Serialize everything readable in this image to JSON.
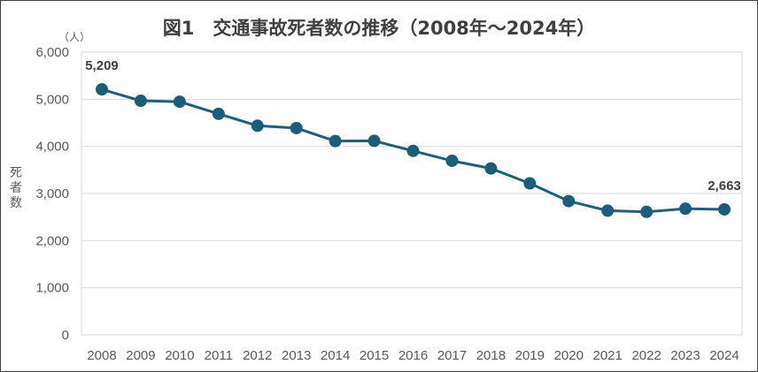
{
  "chart_data": {
    "type": "line",
    "title": "図1　交通事故死者数の推移（2008年～2024年）",
    "unit_label": "（人）",
    "ylabel": "死者数",
    "categories": [
      "2008",
      "2009",
      "2010",
      "2011",
      "2012",
      "2013",
      "2014",
      "2015",
      "2016",
      "2017",
      "2018",
      "2019",
      "2020",
      "2021",
      "2022",
      "2023",
      "2024"
    ],
    "series": [
      {
        "values": [
          5209,
          4968,
          4948,
          4691,
          4438,
          4388,
          4113,
          4117,
          3904,
          3694,
          3532,
          3215,
          2839,
          2636,
          2610,
          2678,
          2663
        ]
      }
    ],
    "ylim": [
      0,
      6000
    ],
    "yticks": [
      0,
      1000,
      2000,
      3000,
      4000,
      5000,
      6000
    ],
    "ytick_labels": [
      "0",
      "1,000",
      "2,000",
      "3,000",
      "4,000",
      "5,000",
      "6,000"
    ],
    "data_labels": [
      {
        "index": 0,
        "text": "5,209"
      },
      {
        "index": 16,
        "text": "2,663"
      }
    ],
    "grid": true,
    "legend": "none",
    "colors": {
      "line": "#1F5F7A",
      "marker": "#1B5E7B",
      "grid": "#D9D9D9",
      "text": "#595959"
    }
  }
}
